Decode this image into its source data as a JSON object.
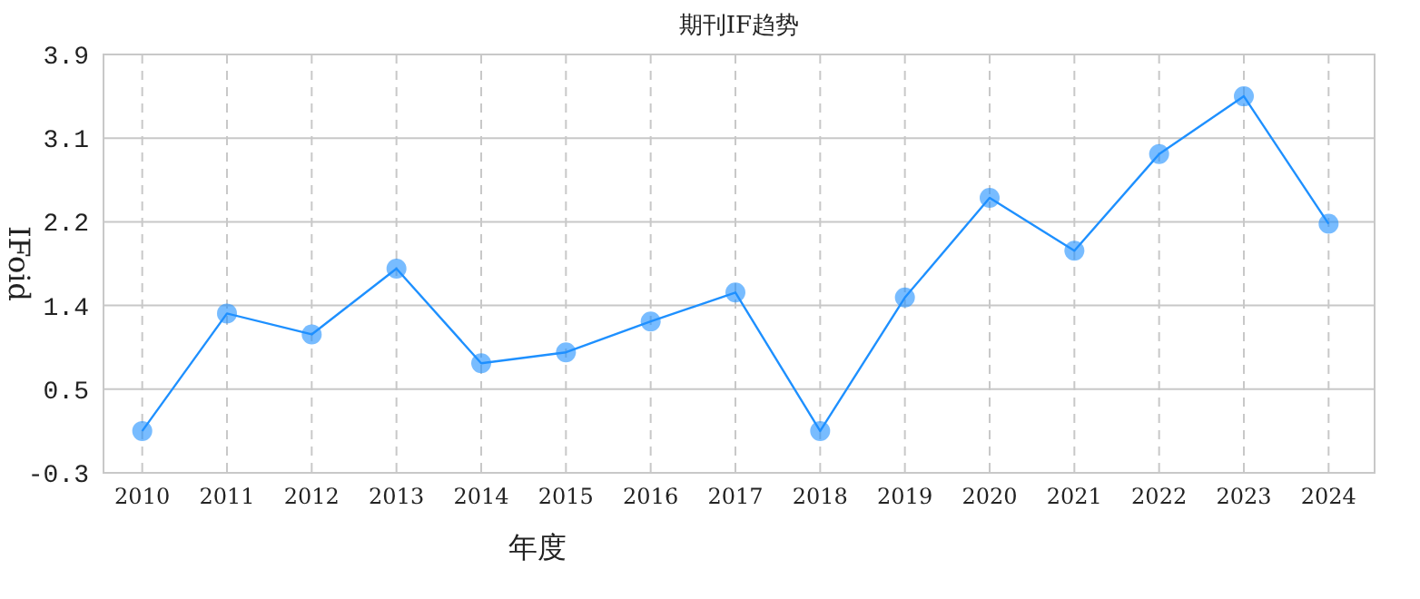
{
  "chart_data": {
    "type": "line",
    "title": "期刊IF趋势",
    "xlabel": "年度",
    "ylabel": "IFoid",
    "categories": [
      "2010",
      "2011",
      "2012",
      "2013",
      "2014",
      "2015",
      "2016",
      "2017",
      "2018",
      "2019",
      "2020",
      "2021",
      "2022",
      "2023",
      "2024"
    ],
    "series": [
      {
        "color": "#1e90ff",
        "values": [
          0.12,
          1.3,
          1.09,
          1.75,
          0.8,
          0.91,
          1.22,
          1.51,
          0.12,
          1.46,
          2.46,
          1.93,
          2.9,
          3.48,
          2.2
        ]
      }
    ],
    "ylim": [
      -0.3,
      3.9
    ],
    "yticks": [
      {
        "value": -0.3,
        "label": "-0.3"
      },
      {
        "value": 0.54,
        "label": "0.5"
      },
      {
        "value": 1.38,
        "label": "1.4"
      },
      {
        "value": 2.22,
        "label": "2.2"
      },
      {
        "value": 3.06,
        "label": "3.1"
      },
      {
        "value": 3.9,
        "label": "3.9"
      }
    ],
    "grid": true,
    "marker": "circle",
    "line_style": "solid"
  }
}
